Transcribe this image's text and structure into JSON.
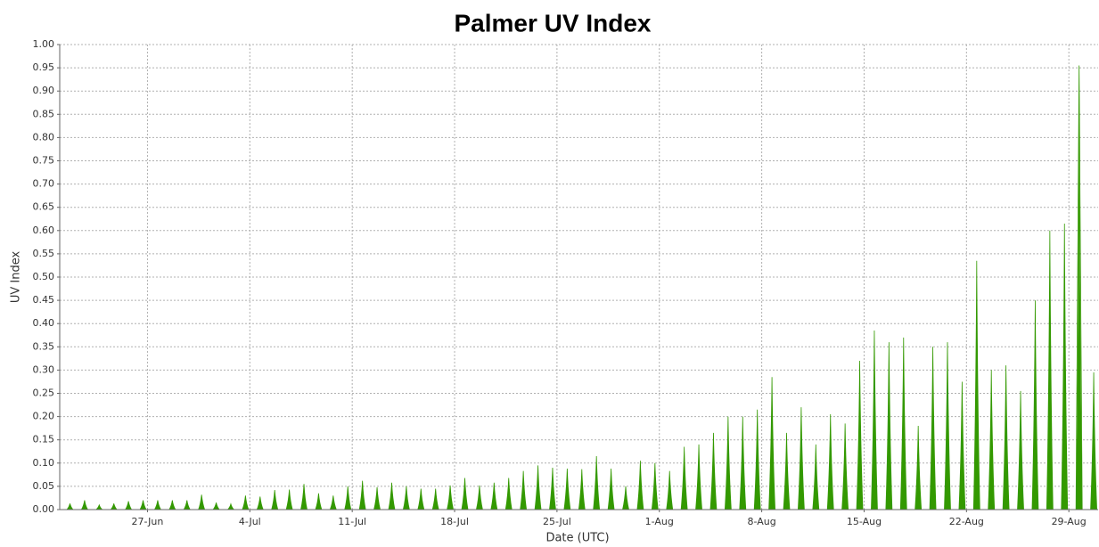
{
  "chart_data": {
    "type": "spike",
    "title": "Palmer UV Index",
    "x_label": "Date (UTC)",
    "y_label": "UV Index",
    "color": "#339900",
    "grid": true,
    "categories": [
      null,
      null,
      null,
      null,
      null,
      null,
      "27-Jun",
      null,
      null,
      null,
      null,
      null,
      null,
      "4-Jul",
      null,
      null,
      null,
      null,
      null,
      null,
      "11-Jul",
      null,
      null,
      null,
      null,
      null,
      null,
      "18-Jul",
      null,
      null,
      null,
      null,
      null,
      null,
      "25-Jul",
      null,
      null,
      null,
      null,
      null,
      null,
      "1-Aug",
      null,
      null,
      null,
      null,
      null,
      null,
      "8-Aug",
      null,
      null,
      null,
      null,
      null,
      null,
      "15-Aug",
      null,
      null,
      null,
      null,
      null,
      null,
      "22-Aug",
      null,
      null,
      null,
      null,
      null,
      null,
      "29-Aug",
      null
    ],
    "values": [
      0.013,
      0.02,
      0.01,
      0.013,
      0.018,
      0.02,
      0.02,
      0.02,
      0.02,
      0.032,
      0.015,
      0.012,
      0.03,
      0.028,
      0.042,
      0.043,
      0.055,
      0.035,
      0.03,
      0.05,
      0.062,
      0.048,
      0.058,
      0.05,
      0.045,
      0.045,
      0.052,
      0.068,
      0.052,
      0.058,
      0.068,
      0.083,
      0.095,
      0.09,
      0.088,
      0.087,
      0.115,
      0.088,
      0.05,
      0.105,
      0.1,
      0.083,
      0.135,
      0.14,
      0.165,
      0.2,
      0.2,
      0.215,
      0.285,
      0.165,
      0.22,
      0.14,
      0.205,
      0.185,
      0.32,
      0.385,
      0.36,
      0.37,
      0.18,
      0.35,
      0.36,
      0.275,
      0.535,
      0.3,
      0.31,
      0.255,
      0.45,
      0.6,
      0.615,
      0.955,
      0.295
    ],
    "ylim": [
      0,
      1
    ],
    "yticks": [
      {
        "value": 0,
        "label": "0.00"
      },
      {
        "value": 0.05,
        "label": "0.05"
      },
      {
        "value": 0.1,
        "label": "0.10"
      },
      {
        "value": 0.15,
        "label": "0.15"
      },
      {
        "value": 0.2,
        "label": "0.20"
      },
      {
        "value": 0.25,
        "label": "0.25"
      },
      {
        "value": 0.3,
        "label": "0.30"
      },
      {
        "value": 0.35,
        "label": "0.35"
      },
      {
        "value": 0.4,
        "label": "0.40"
      },
      {
        "value": 0.45,
        "label": "0.45"
      },
      {
        "value": 0.5,
        "label": "0.50"
      },
      {
        "value": 0.55,
        "label": "0.55"
      },
      {
        "value": 0.6,
        "label": "0.60"
      },
      {
        "value": 0.65,
        "label": "0.65"
      },
      {
        "value": 0.7,
        "label": "0.70"
      },
      {
        "value": 0.75,
        "label": "0.75"
      },
      {
        "value": 0.8,
        "label": "0.80"
      },
      {
        "value": 0.85,
        "label": "0.85"
      },
      {
        "value": 0.9,
        "label": "0.90"
      },
      {
        "value": 0.95,
        "label": "0.95"
      },
      {
        "value": 1,
        "label": "1.00"
      }
    ]
  }
}
